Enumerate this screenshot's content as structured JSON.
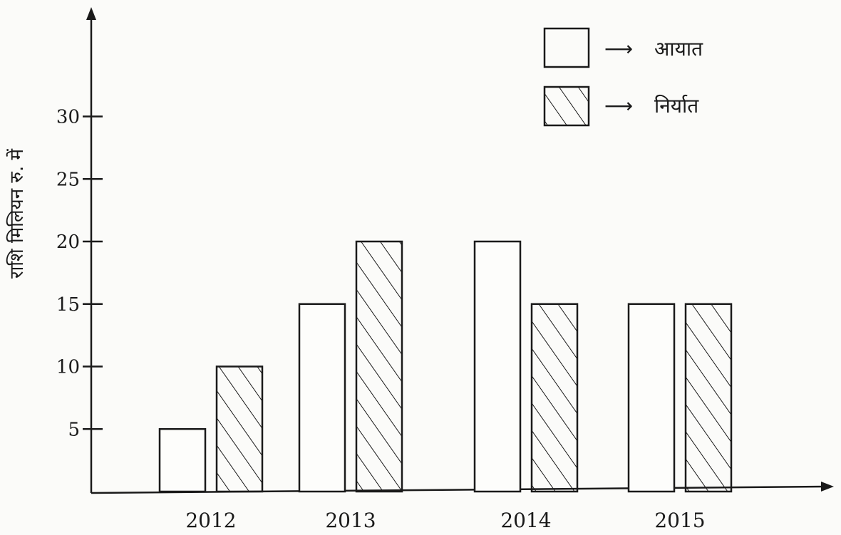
{
  "chart_data": {
    "type": "bar",
    "categories": [
      "2012",
      "2013",
      "2014",
      "2015"
    ],
    "series": [
      {
        "name": "आयात",
        "values": [
          5,
          15,
          20,
          15
        ],
        "pattern": "empty"
      },
      {
        "name": "निर्यात",
        "values": [
          10,
          20,
          15,
          15
        ],
        "pattern": "hatched"
      }
    ],
    "ylabel": "राशि मिलियन रु. में",
    "xlabel": "",
    "yticks": [
      5,
      10,
      15,
      20,
      25,
      30
    ],
    "ylim": [
      0,
      30
    ],
    "grid": false,
    "legend_position": "top-right",
    "legend_arrow": "⟶"
  },
  "colors": {
    "ink": "#1a1a1a",
    "background": "#fbfbf9"
  }
}
